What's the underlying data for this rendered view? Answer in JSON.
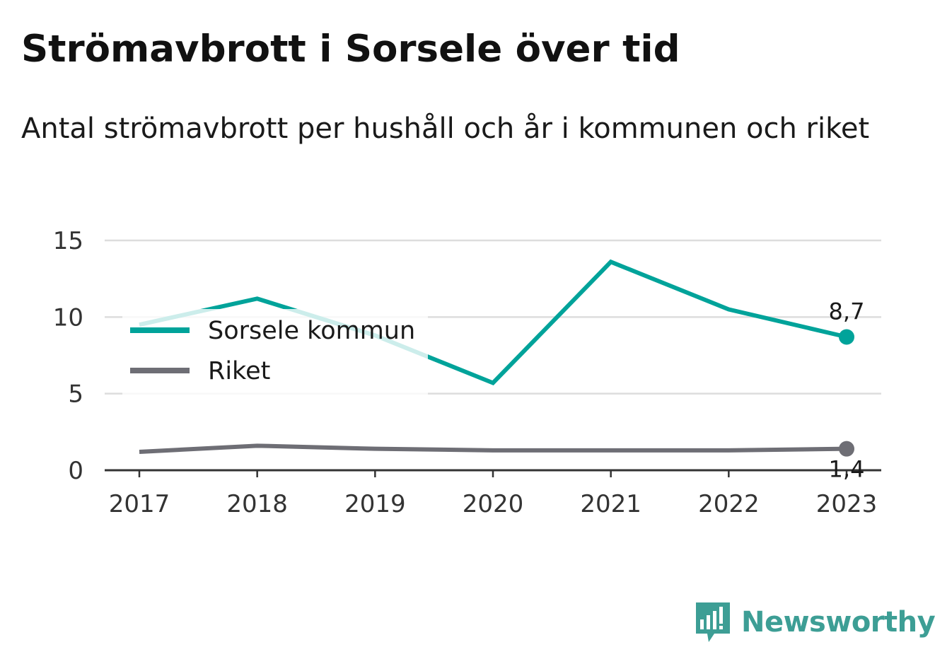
{
  "title": "Strömavbrott i Sorsele över tid",
  "subtitle": "Antal strömavbrott per hushåll och år i kommunen och riket",
  "brand": {
    "name": "Newsworthy",
    "icon": "newsworthy-logo-icon",
    "color": "#3d9e95"
  },
  "chart_data": {
    "type": "line",
    "x": [
      "2017",
      "2018",
      "2019",
      "2020",
      "2021",
      "2022",
      "2023"
    ],
    "series": [
      {
        "name": "Sorsele kommun",
        "color": "#00a39a",
        "values": [
          9.5,
          11.2,
          8.8,
          5.7,
          13.6,
          10.5,
          8.7
        ],
        "end_label": "8,7"
      },
      {
        "name": "Riket",
        "color": "#6e6e75",
        "values": [
          1.2,
          1.6,
          1.4,
          1.3,
          1.3,
          1.3,
          1.4
        ],
        "end_label": "1,4"
      }
    ],
    "yticks": [
      "0",
      "5",
      "10",
      "15"
    ],
    "ylim": [
      0,
      15
    ],
    "grid": true,
    "legend_position": "upper-left"
  }
}
